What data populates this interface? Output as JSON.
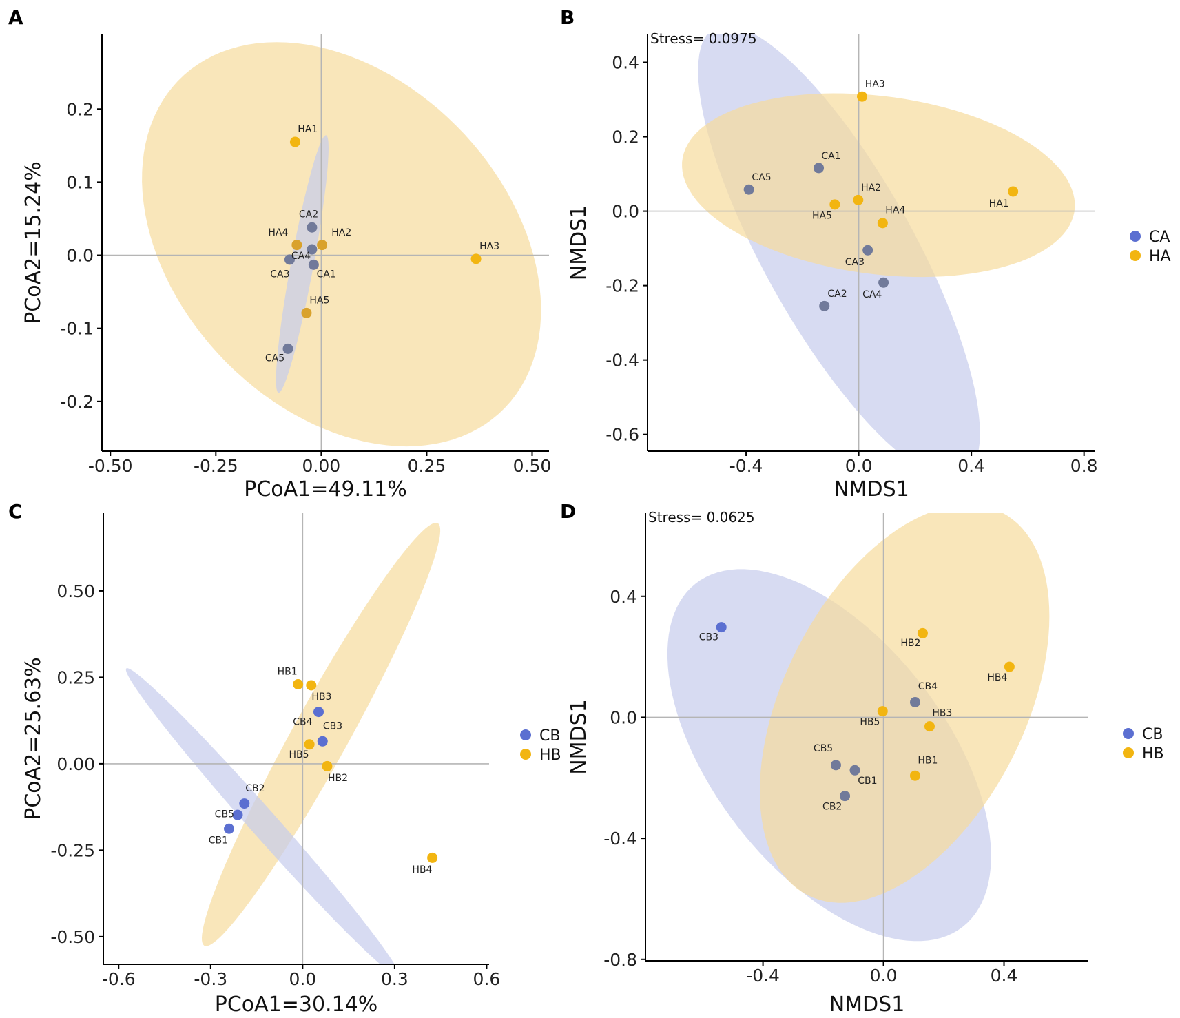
{
  "colors": {
    "blue": "#5B6FD1",
    "blue_mixed": "#717A9A",
    "yellow": "#F2B511",
    "yellow_mixed": "#D9A22C",
    "fill_blue": "#C6CCEC",
    "fill_yellow": "#F6DC9C",
    "axis": "#000000",
    "refline": "#B5B5B5"
  },
  "chart_data": [
    {
      "id": "A",
      "panel_label": "A",
      "type": "scatter",
      "xlabel": "PCoA1=49.11%",
      "ylabel": "PCoA2=15.24%",
      "xlim": [
        -0.52,
        0.54
      ],
      "ylim": [
        -0.268,
        0.302
      ],
      "xticks": [
        -0.5,
        -0.25,
        0.0,
        0.25,
        0.5
      ],
      "xticklabels": [
        "-0.50",
        "-0.25",
        "0.00",
        "0.25",
        "0.50"
      ],
      "yticks": [
        -0.2,
        -0.1,
        0.0,
        0.1,
        0.2
      ],
      "yticklabels": [
        "-0.2",
        "-0.1",
        "0.0",
        "0.1",
        "0.2"
      ],
      "stress": null,
      "legend": null,
      "ellipses": [
        {
          "group": "HA",
          "color": "fill_yellow",
          "cx": 0.048,
          "cy": 0.015,
          "rx": 0.485,
          "ry": 0.255,
          "angle_deg": -15
        },
        {
          "group": "CA",
          "color": "fill_blue",
          "cx": -0.045,
          "cy": -0.012,
          "rx": 0.185,
          "ry": 0.026,
          "angle_deg": 72
        }
      ],
      "points": [
        {
          "label": "HA1",
          "group": "HA",
          "x": -0.062,
          "y": 0.155,
          "lx": -0.032,
          "ly": 0.168
        },
        {
          "label": "HA2",
          "group": "HA",
          "x": 0.002,
          "y": 0.014,
          "lx": 0.048,
          "ly": 0.027
        },
        {
          "label": "HA3",
          "group": "HA",
          "x": 0.367,
          "y": -0.005,
          "lx": 0.399,
          "ly": 0.008
        },
        {
          "label": "HA4",
          "group": "HA",
          "x": -0.058,
          "y": 0.014,
          "lx": -0.102,
          "ly": 0.027
        },
        {
          "label": "HA5",
          "group": "HA",
          "x": -0.035,
          "y": -0.079,
          "lx": -0.004,
          "ly": -0.066
        },
        {
          "label": "CA1",
          "group": "CA",
          "x": -0.018,
          "y": -0.013,
          "lx": 0.012,
          "ly": -0.03
        },
        {
          "label": "CA2",
          "group": "CA",
          "x": -0.022,
          "y": 0.038,
          "lx": -0.03,
          "ly": 0.052
        },
        {
          "label": "CA3",
          "group": "CA",
          "x": -0.075,
          "y": -0.006,
          "lx": -0.098,
          "ly": -0.03
        },
        {
          "label": "CA4",
          "group": "CA",
          "x": -0.022,
          "y": 0.008,
          "lx": -0.048,
          "ly": -0.005
        },
        {
          "label": "CA5",
          "group": "CA",
          "x": -0.079,
          "y": -0.128,
          "lx": -0.11,
          "ly": -0.145
        }
      ]
    },
    {
      "id": "B",
      "panel_label": "B",
      "type": "scatter",
      "xlabel": "NMDS1",
      "ylabel": "NMDS1",
      "xlim": [
        -0.75,
        0.84
      ],
      "ylim": [
        -0.645,
        0.475
      ],
      "xticks": [
        -0.4,
        0.0,
        0.4,
        0.8
      ],
      "xticklabels": [
        "-0.4",
        "0.0",
        "0.4",
        "0.8"
      ],
      "yticks": [
        -0.6,
        -0.4,
        -0.2,
        0.0,
        0.2,
        0.4
      ],
      "yticklabels": [
        "-0.6",
        "-0.4",
        "-0.2",
        "0.0",
        "0.2",
        "0.4"
      ],
      "stress": "Stress= 0.0975",
      "legend": {
        "items": [
          {
            "label": "CA",
            "color": "blue"
          },
          {
            "label": "HA",
            "color": "yellow"
          }
        ]
      },
      "ellipses": [
        {
          "group": "CA",
          "color": "fill_blue",
          "cx": -0.07,
          "cy": -0.11,
          "rx": 0.75,
          "ry": 0.245,
          "angle_deg": -52
        },
        {
          "group": "HA",
          "color": "fill_yellow",
          "cx": 0.07,
          "cy": 0.07,
          "rx": 0.7,
          "ry": 0.24,
          "angle_deg": -5
        }
      ],
      "points": [
        {
          "label": "HA1",
          "group": "HA",
          "x": 0.548,
          "y": 0.053,
          "lx": 0.498,
          "ly": 0.012
        },
        {
          "label": "HA2",
          "group": "HA",
          "x": -0.002,
          "y": 0.03,
          "lx": 0.044,
          "ly": 0.055
        },
        {
          "label": "HA3",
          "group": "HA",
          "x": 0.012,
          "y": 0.308,
          "lx": 0.058,
          "ly": 0.333
        },
        {
          "label": "HA4",
          "group": "HA",
          "x": 0.085,
          "y": -0.032,
          "lx": 0.13,
          "ly": -0.005
        },
        {
          "label": "HA5",
          "group": "HA",
          "x": -0.085,
          "y": 0.018,
          "lx": -0.13,
          "ly": -0.02
        },
        {
          "label": "CA1",
          "group": "CA",
          "x": -0.142,
          "y": 0.116,
          "lx": -0.098,
          "ly": 0.14
        },
        {
          "label": "CA2",
          "group": "CA",
          "x": -0.122,
          "y": -0.255,
          "lx": -0.076,
          "ly": -0.23
        },
        {
          "label": "CA3",
          "group": "CA",
          "x": 0.032,
          "y": -0.105,
          "lx": -0.014,
          "ly": -0.145
        },
        {
          "label": "CA4",
          "group": "CA",
          "x": 0.088,
          "y": -0.192,
          "lx": 0.048,
          "ly": -0.232
        },
        {
          "label": "CA5",
          "group": "CA",
          "x": -0.39,
          "y": 0.058,
          "lx": -0.345,
          "ly": 0.083
        }
      ]
    },
    {
      "id": "C",
      "panel_label": "C",
      "type": "scatter",
      "xlabel": "PCoA1=30.14%",
      "ylabel": "PCoA2=25.63%",
      "xlim": [
        -0.65,
        0.608
      ],
      "ylim": [
        -0.58,
        0.725
      ],
      "xticks": [
        -0.6,
        -0.3,
        0.0,
        0.3,
        0.6
      ],
      "xticklabels": [
        "-0.6",
        "-0.3",
        "0.0",
        "0.3",
        "0.6"
      ],
      "yticks": [
        -0.5,
        -0.25,
        0.0,
        0.25,
        0.5
      ],
      "yticklabels": [
        "-0.50",
        "-0.25",
        "0.00",
        "0.25",
        "0.50"
      ],
      "stress": null,
      "legend": {
        "items": [
          {
            "label": "CB",
            "color": "blue"
          },
          {
            "label": "HB",
            "color": "yellow"
          }
        ]
      },
      "ellipses": [
        {
          "group": "HB",
          "color": "fill_yellow",
          "cx": 0.06,
          "cy": 0.085,
          "rx": 0.72,
          "ry": 0.088,
          "angle_deg": 58
        },
        {
          "group": "CB",
          "color": "fill_blue",
          "cx": -0.13,
          "cy": -0.17,
          "rx": 0.63,
          "ry": 0.042,
          "angle_deg": -45
        }
      ],
      "points": [
        {
          "label": "HB1",
          "group": "HB",
          "x": -0.015,
          "y": 0.23,
          "lx": -0.05,
          "ly": 0.258
        },
        {
          "label": "HB2",
          "group": "HB",
          "x": 0.08,
          "y": -0.007,
          "lx": 0.115,
          "ly": -0.05
        },
        {
          "label": "HB3",
          "group": "HB",
          "x": 0.028,
          "y": 0.227,
          "lx": 0.062,
          "ly": 0.185
        },
        {
          "label": "HB4",
          "group": "HB",
          "x": 0.423,
          "y": -0.272,
          "lx": 0.39,
          "ly": -0.315
        },
        {
          "label": "HB5",
          "group": "HB",
          "x": 0.022,
          "y": 0.056,
          "lx": -0.012,
          "ly": 0.018
        },
        {
          "label": "CB1",
          "group": "CB",
          "x": -0.24,
          "y": -0.188,
          "lx": -0.275,
          "ly": -0.23
        },
        {
          "label": "CB2",
          "group": "CB",
          "x": -0.19,
          "y": -0.115,
          "lx": -0.155,
          "ly": -0.08
        },
        {
          "label": "CB3",
          "group": "CB",
          "x": 0.065,
          "y": 0.065,
          "lx": 0.098,
          "ly": 0.1
        },
        {
          "label": "CB4",
          "group": "CB",
          "x": 0.052,
          "y": 0.15,
          "lx": 0.0,
          "ly": 0.112
        },
        {
          "label": "CB5",
          "group": "CB",
          "x": -0.212,
          "y": -0.148,
          "lx": -0.255,
          "ly": -0.155
        }
      ]
    },
    {
      "id": "D",
      "panel_label": "D",
      "type": "scatter",
      "xlabel": "NMDS1",
      "ylabel": "NMDS1",
      "xlim": [
        -0.79,
        0.68
      ],
      "ylim": [
        -0.805,
        0.675
      ],
      "xticks": [
        -0.4,
        0.0,
        0.4
      ],
      "xticklabels": [
        "-0.4",
        "0.0",
        "0.4"
      ],
      "yticks": [
        -0.8,
        -0.4,
        0.0,
        0.4
      ],
      "yticklabels": [
        "-0.8",
        "-0.4",
        "0.0",
        "0.4"
      ],
      "stress": "Stress= 0.0625",
      "legend": {
        "items": [
          {
            "label": "CB",
            "color": "blue"
          },
          {
            "label": "HB",
            "color": "yellow"
          }
        ]
      },
      "ellipses": [
        {
          "group": "CB",
          "color": "fill_blue",
          "cx": -0.18,
          "cy": -0.125,
          "rx": 0.72,
          "ry": 0.385,
          "angle_deg": -52
        },
        {
          "group": "HB",
          "color": "fill_yellow",
          "cx": 0.07,
          "cy": 0.045,
          "rx": 0.71,
          "ry": 0.4,
          "angle_deg": 63
        }
      ],
      "points": [
        {
          "label": "HB1",
          "group": "HB",
          "x": 0.105,
          "y": -0.193,
          "lx": 0.147,
          "ly": -0.153
        },
        {
          "label": "HB2",
          "group": "HB",
          "x": 0.13,
          "y": 0.278,
          "lx": 0.09,
          "ly": 0.235
        },
        {
          "label": "HB3",
          "group": "HB",
          "x": 0.153,
          "y": -0.03,
          "lx": 0.195,
          "ly": 0.005
        },
        {
          "label": "HB4",
          "group": "HB",
          "x": 0.418,
          "y": 0.167,
          "lx": 0.378,
          "ly": 0.122
        },
        {
          "label": "HB5",
          "group": "HB",
          "x": -0.003,
          "y": 0.02,
          "lx": -0.045,
          "ly": -0.025
        },
        {
          "label": "CB1",
          "group": "CB",
          "x": -0.095,
          "y": -0.175,
          "lx": -0.053,
          "ly": -0.22
        },
        {
          "label": "CB2",
          "group": "CB",
          "x": -0.128,
          "y": -0.26,
          "lx": -0.17,
          "ly": -0.305
        },
        {
          "label": "CB3",
          "group": "CB",
          "x": -0.538,
          "y": 0.298,
          "lx": -0.58,
          "ly": 0.255
        },
        {
          "label": "CB4",
          "group": "CB",
          "x": 0.105,
          "y": 0.05,
          "lx": 0.147,
          "ly": 0.092
        },
        {
          "label": "CB5",
          "group": "CB",
          "x": -0.158,
          "y": -0.158,
          "lx": -0.2,
          "ly": -0.113
        }
      ]
    }
  ]
}
